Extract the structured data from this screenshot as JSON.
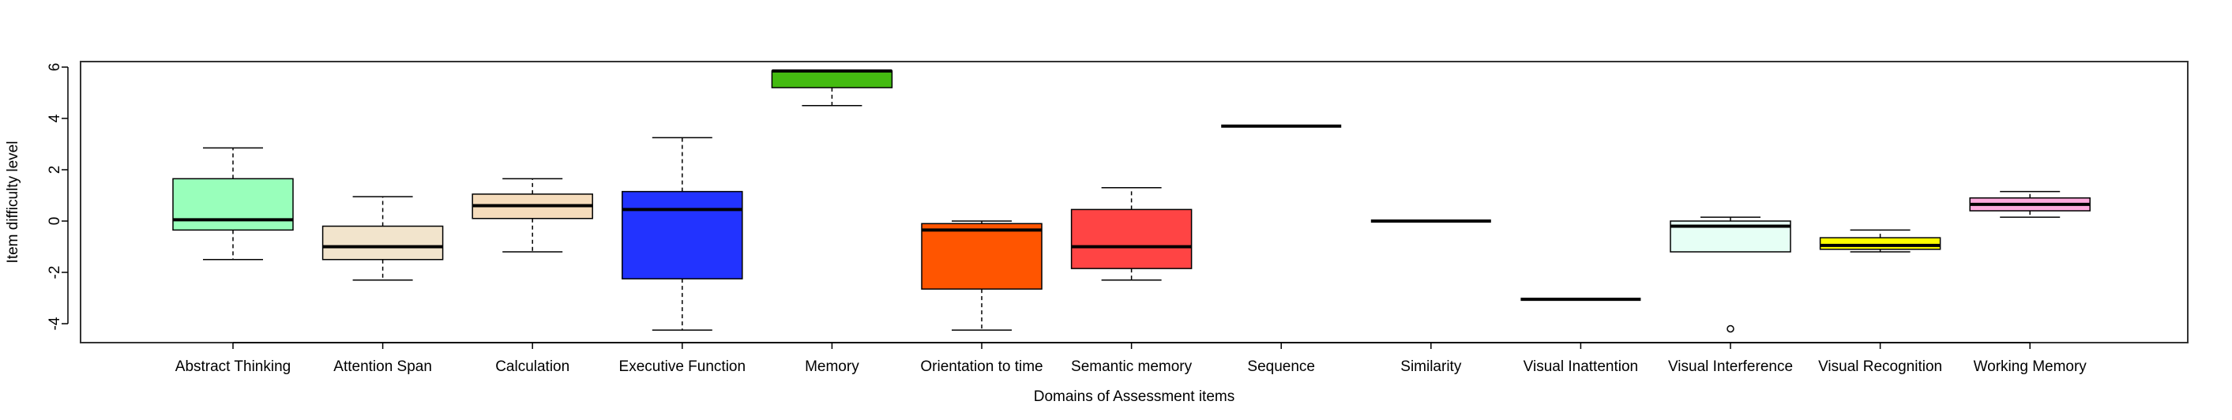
{
  "chart_data": {
    "type": "boxplot",
    "title": "",
    "xlabel": "Domains of Assessment items",
    "ylabel": "Item difficulty level",
    "ylim": [
      -4.6,
      6.2
    ],
    "yticks": [
      -4,
      -2,
      0,
      2,
      4,
      6
    ],
    "ytick_labels": [
      "-4",
      "-2",
      "0",
      "2",
      "4",
      "6"
    ],
    "categories": [
      "Abstract Thinking",
      "Attention Span",
      "Calculation",
      "Executive Function",
      "Memory",
      "Orientation to time",
      "Semantic memory",
      "Sequence",
      "Similarity",
      "Visual Inattention",
      "Visual Interference",
      "Visual Recognition",
      "Working Memory"
    ],
    "boxes": [
      {
        "name": "Abstract Thinking",
        "whisker_low": -1.5,
        "q1": -0.35,
        "median": 0.05,
        "q3": 1.65,
        "whisker_high": 2.85,
        "outliers": [],
        "color": "#99ffbb"
      },
      {
        "name": "Attention Span",
        "whisker_low": -2.3,
        "q1": -1.5,
        "median": -1.0,
        "q3": -0.2,
        "whisker_high": 0.95,
        "outliers": [],
        "color": "#f2e4cc"
      },
      {
        "name": "Calculation",
        "whisker_low": -1.2,
        "q1": 0.1,
        "median": 0.6,
        "q3": 1.05,
        "whisker_high": 1.65,
        "outliers": [],
        "color": "#f5dcbc"
      },
      {
        "name": "Executive Function",
        "whisker_low": -4.25,
        "q1": -2.25,
        "median": 0.45,
        "q3": 1.15,
        "whisker_high": 3.25,
        "outliers": [],
        "color": "#2233ff"
      },
      {
        "name": "Memory",
        "whisker_low": 4.5,
        "q1": 5.2,
        "median": 5.85,
        "q3": 5.85,
        "whisker_high": 5.85,
        "outliers": [],
        "color": "#44bb11"
      },
      {
        "name": "Orientation to time",
        "whisker_low": -4.25,
        "q1": -2.65,
        "median": -0.35,
        "q3": -0.1,
        "whisker_high": 0.0,
        "outliers": [],
        "color": "#ff5500"
      },
      {
        "name": "Semantic memory",
        "whisker_low": -2.3,
        "q1": -1.85,
        "median": -1.0,
        "q3": 0.45,
        "whisker_high": 1.3,
        "outliers": [],
        "color": "#ff4444"
      },
      {
        "name": "Sequence",
        "whisker_low": 3.7,
        "q1": 3.7,
        "median": 3.7,
        "q3": 3.7,
        "whisker_high": 3.7,
        "outliers": [],
        "color": "#000000"
      },
      {
        "name": "Similarity",
        "whisker_low": 0.0,
        "q1": 0.0,
        "median": 0.0,
        "q3": 0.0,
        "whisker_high": 0.0,
        "outliers": [],
        "color": "#000000"
      },
      {
        "name": "Visual Inattention",
        "whisker_low": -3.05,
        "q1": -3.05,
        "median": -3.05,
        "q3": -3.05,
        "whisker_high": -3.05,
        "outliers": [],
        "color": "#000000"
      },
      {
        "name": "Visual Interference",
        "whisker_low": -1.2,
        "q1": -1.2,
        "median": -0.2,
        "q3": 0.0,
        "whisker_high": 0.15,
        "outliers": [
          -4.2
        ],
        "color": "#e6fff5"
      },
      {
        "name": "Visual Recognition",
        "whisker_low": -1.2,
        "q1": -1.1,
        "median": -0.95,
        "q3": -0.65,
        "whisker_high": -0.35,
        "outliers": [],
        "color": "#ffff00"
      },
      {
        "name": "Working Memory",
        "whisker_low": 0.15,
        "q1": 0.4,
        "median": 0.65,
        "q3": 0.9,
        "whisker_high": 1.15,
        "outliers": [],
        "color": "#ffaadd"
      }
    ]
  }
}
